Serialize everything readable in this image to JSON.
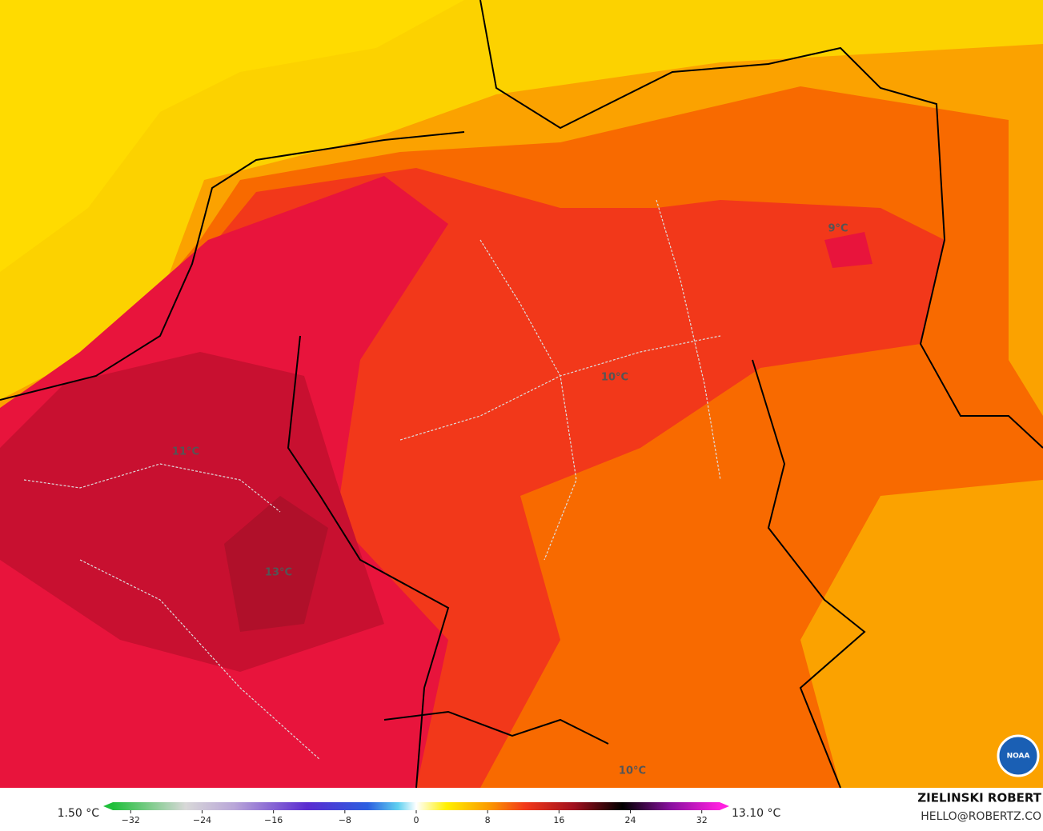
{
  "map": {
    "labels": [
      "9°C",
      "10°C",
      "11°C",
      "13°C",
      "10°C"
    ],
    "logo": "NOAA"
  },
  "colorbar": {
    "min_text": "1.50 °C",
    "max_text": "13.10 °C",
    "range": [
      -34,
      34
    ],
    "ticks": [
      {
        "value": -32,
        "label": "−32"
      },
      {
        "value": -24,
        "label": "−24"
      },
      {
        "value": -16,
        "label": "−16"
      },
      {
        "value": -8,
        "label": "−8"
      },
      0,
      8,
      16,
      24,
      32
    ]
  },
  "credit": {
    "name": "ZIELINSKI ROBERT",
    "contact": "HELLO@ROBERTZ.CO"
  }
}
